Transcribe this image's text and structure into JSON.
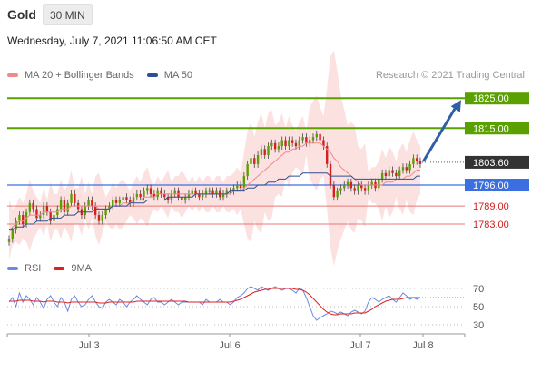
{
  "header": {
    "title": "Gold",
    "timeframe": "30 MIN"
  },
  "date_line": "Wednesday, July 7, 2021 11:06:50 AM CET",
  "legend": [
    {
      "label": "MA 20 + Bollinger Bands",
      "color": "#f08a8a"
    },
    {
      "label": "MA 50",
      "color": "#2f4f8f"
    }
  ],
  "copyright": "Research © 2021 Trading Central",
  "rsi_legend": [
    {
      "label": "RSI",
      "color": "#6b8be0"
    },
    {
      "label": "9MA",
      "color": "#e02020"
    }
  ],
  "colors": {
    "resistance": "#5aa000",
    "support": "#3b6fe0",
    "level_red": "#e87878",
    "current": "#333333",
    "arrow": "#2f5fa8",
    "candle_up": "#5aa000",
    "candle_down": "#d62020",
    "band_fill": "#fbdcdc"
  },
  "chart_data": [
    {
      "type": "line",
      "title": "",
      "instrument": "Gold",
      "interval": "30 MIN",
      "ylim": [
        1773,
        1829
      ],
      "x_ticks": [
        "Jul 3",
        "Jul 6",
        "Jul 7",
        "Jul 8"
      ],
      "current_price": {
        "value": 1803.6,
        "label": "1803.60"
      },
      "levels": [
        {
          "value": 1825.0,
          "label": "1825.00",
          "kind": "resistance"
        },
        {
          "value": 1815.0,
          "label": "1815.00",
          "kind": "resistance"
        },
        {
          "value": 1796.0,
          "label": "1796.00",
          "kind": "support"
        },
        {
          "value": 1789.0,
          "label": "1789.00",
          "kind": "minor"
        },
        {
          "value": 1783.0,
          "label": "1783.00",
          "kind": "minor"
        }
      ],
      "target_arrow": {
        "from": 1803.6,
        "to": 1825.0
      },
      "price_series": [
        1778,
        1781,
        1784,
        1786,
        1783,
        1787,
        1790,
        1788,
        1785,
        1786,
        1789,
        1787,
        1784,
        1786,
        1788,
        1791,
        1787,
        1790,
        1793,
        1790,
        1788,
        1786,
        1789,
        1791,
        1789,
        1786,
        1784,
        1786,
        1788,
        1789,
        1791,
        1790,
        1791,
        1792,
        1791,
        1790,
        1792,
        1793,
        1792,
        1794,
        1795,
        1793,
        1792,
        1794,
        1793,
        1792,
        1791,
        1793,
        1794,
        1792,
        1791,
        1792,
        1793,
        1794,
        1793,
        1792,
        1793,
        1794,
        1794,
        1793,
        1794,
        1792,
        1793,
        1794,
        1794,
        1795,
        1796,
        1795,
        1799,
        1803,
        1805,
        1803,
        1806,
        1808,
        1806,
        1809,
        1810,
        1808,
        1809,
        1811,
        1809,
        1811,
        1810,
        1809,
        1811,
        1812,
        1810,
        1811,
        1812,
        1813,
        1811,
        1809,
        1803,
        1796,
        1792,
        1794,
        1795,
        1796,
        1797,
        1795,
        1794,
        1796,
        1795,
        1794,
        1796,
        1797,
        1795,
        1798,
        1800,
        1799,
        1801,
        1800,
        1799,
        1801,
        1802,
        1801,
        1803,
        1805,
        1804,
        1803
      ],
      "ma20_series": [
        1781,
        1782,
        1783,
        1784,
        1784,
        1785,
        1786,
        1786,
        1786,
        1786,
        1787,
        1787,
        1787,
        1787,
        1787,
        1788,
        1788,
        1788,
        1789,
        1789,
        1789,
        1789,
        1789,
        1789,
        1789,
        1789,
        1788,
        1788,
        1788,
        1788,
        1789,
        1789,
        1789,
        1790,
        1790,
        1790,
        1791,
        1791,
        1791,
        1792,
        1792,
        1792,
        1792,
        1793,
        1793,
        1793,
        1793,
        1793,
        1793,
        1793,
        1793,
        1793,
        1793,
        1793,
        1793,
        1793,
        1793,
        1793,
        1793,
        1793,
        1793,
        1793,
        1793,
        1793,
        1793,
        1794,
        1794,
        1794,
        1795,
        1796,
        1797,
        1798,
        1799,
        1800,
        1801,
        1802,
        1803,
        1804,
        1805,
        1806,
        1807,
        1807,
        1808,
        1808,
        1809,
        1809,
        1810,
        1810,
        1810,
        1810,
        1810,
        1809,
        1808,
        1807,
        1805,
        1804,
        1802,
        1801,
        1800,
        1799,
        1798,
        1797,
        1796,
        1796,
        1796,
        1796,
        1796,
        1796,
        1796,
        1797,
        1797,
        1797,
        1798,
        1798,
        1798,
        1799,
        1799,
        1800,
        1801,
        1801
      ],
      "ma50_series": [
        1781,
        1781,
        1782,
        1782,
        1782,
        1783,
        1783,
        1783,
        1784,
        1784,
        1784,
        1784,
        1785,
        1785,
        1785,
        1785,
        1786,
        1786,
        1786,
        1786,
        1787,
        1787,
        1787,
        1787,
        1787,
        1788,
        1788,
        1788,
        1788,
        1788,
        1789,
        1789,
        1789,
        1789,
        1789,
        1790,
        1790,
        1790,
        1790,
        1790,
        1791,
        1791,
        1791,
        1791,
        1791,
        1791,
        1792,
        1792,
        1792,
        1792,
        1792,
        1792,
        1792,
        1792,
        1793,
        1793,
        1793,
        1793,
        1793,
        1793,
        1793,
        1793,
        1793,
        1793,
        1794,
        1794,
        1794,
        1794,
        1794,
        1795,
        1795,
        1795,
        1796,
        1796,
        1796,
        1797,
        1797,
        1797,
        1798,
        1798,
        1798,
        1799,
        1799,
        1799,
        1799,
        1800,
        1800,
        1800,
        1800,
        1800,
        1800,
        1800,
        1800,
        1799,
        1799,
        1799,
        1799,
        1799,
        1799,
        1799,
        1798,
        1798,
        1798,
        1798,
        1798,
        1798,
        1798,
        1798,
        1798,
        1798,
        1798,
        1798,
        1798,
        1798,
        1798,
        1798,
        1798,
        1798,
        1799,
        1799
      ]
    },
    {
      "type": "line",
      "title": "",
      "indicator": "RSI",
      "ylim": [
        20,
        80
      ],
      "y_ticks": [
        30,
        50,
        70
      ],
      "rsi_series": [
        55,
        60,
        50,
        65,
        55,
        62,
        58,
        52,
        60,
        55,
        48,
        58,
        62,
        55,
        50,
        60,
        55,
        45,
        58,
        62,
        55,
        50,
        52,
        58,
        62,
        55,
        50,
        48,
        55,
        58,
        55,
        52,
        58,
        55,
        50,
        55,
        58,
        62,
        58,
        55,
        52,
        58,
        60,
        55,
        55,
        52,
        55,
        58,
        55,
        52,
        55,
        55,
        55,
        55,
        55,
        55,
        52,
        58,
        55,
        55,
        55,
        58,
        55,
        55,
        52,
        55,
        60,
        62,
        65,
        70,
        72,
        70,
        68,
        72,
        70,
        68,
        70,
        72,
        70,
        68,
        70,
        70,
        68,
        65,
        70,
        68,
        60,
        50,
        40,
        35,
        38,
        40,
        42,
        45,
        44,
        42,
        44,
        42,
        40,
        44,
        46,
        44,
        42,
        45,
        55,
        60,
        58,
        55,
        58,
        60,
        62,
        58,
        55,
        60,
        65,
        62,
        58,
        60,
        58,
        60
      ],
      "rsi_ma_series": [
        56,
        56,
        56,
        57,
        57,
        57,
        57,
        56,
        56,
        56,
        55,
        56,
        56,
        56,
        55,
        55,
        55,
        54,
        55,
        55,
        55,
        55,
        55,
        55,
        55,
        55,
        54,
        54,
        54,
        55,
        55,
        55,
        55,
        55,
        55,
        55,
        55,
        56,
        56,
        56,
        56,
        56,
        56,
        56,
        56,
        56,
        56,
        56,
        56,
        56,
        56,
        56,
        55,
        55,
        55,
        55,
        55,
        55,
        55,
        55,
        55,
        55,
        55,
        55,
        55,
        56,
        57,
        58,
        60,
        62,
        64,
        66,
        67,
        68,
        69,
        69,
        70,
        70,
        70,
        70,
        70,
        70,
        70,
        69,
        69,
        68,
        66,
        63,
        59,
        55,
        51,
        47,
        44,
        42,
        41,
        41,
        42,
        42,
        42,
        42,
        43,
        43,
        43,
        43,
        45,
        47,
        50,
        52,
        54,
        56,
        57,
        58,
        58,
        58,
        59,
        60,
        60,
        60,
        60,
        60
      ]
    }
  ]
}
